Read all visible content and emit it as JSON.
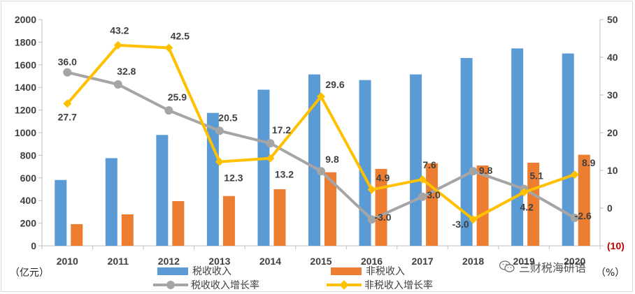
{
  "chart_data": {
    "type": "bar",
    "categories": [
      "2010",
      "2011",
      "2012",
      "2013",
      "2014",
      "2015",
      "2016",
      "2017",
      "2018",
      "2019",
      "2020"
    ],
    "series": [
      {
        "name": "税收收入",
        "kind": "bar",
        "axis": "left",
        "color": "#5b9bd5",
        "values": [
          582,
          775,
          980,
          1175,
          1380,
          1515,
          1465,
          1515,
          1660,
          1745,
          1700
        ]
      },
      {
        "name": "非税收入",
        "kind": "bar",
        "axis": "left",
        "color": "#ed7d31",
        "values": [
          192,
          278,
          395,
          440,
          500,
          650,
          680,
          730,
          710,
          735,
          805
        ]
      },
      {
        "name": "税收收入增长率",
        "kind": "line",
        "axis": "right",
        "color": "#a5a5a5",
        "marker": "circle",
        "values": [
          36.0,
          32.8,
          25.9,
          20.5,
          17.2,
          9.8,
          -3.0,
          3.0,
          9.8,
          5.1,
          -2.6
        ],
        "labels": [
          "36.0",
          "32.8",
          "25.9",
          "20.5",
          "17.2",
          "9.8",
          "-3.0",
          "3.0",
          "9.8",
          "5.1",
          "-2.6"
        ]
      },
      {
        "name": "非税收入增长率",
        "kind": "line",
        "axis": "right",
        "color": "#ffc000",
        "marker": "diamond",
        "values": [
          27.7,
          43.2,
          42.5,
          12.3,
          13.2,
          29.6,
          4.9,
          7.6,
          -3.0,
          4.2,
          8.9
        ],
        "labels": [
          "27.7",
          "43.2",
          "42.5",
          "12.3",
          "13.2",
          "29.6",
          "4.9",
          "7.6",
          "-3.0",
          "4.2",
          "8.9"
        ]
      }
    ],
    "ylim_left": [
      0,
      2000
    ],
    "yticks_left": [
      "0",
      "200",
      "400",
      "600",
      "800",
      "1000",
      "1200",
      "1400",
      "1600",
      "1800",
      "2000"
    ],
    "ylim_right": [
      -10,
      50
    ],
    "yticks_right": [
      "(10)",
      "0",
      "10",
      "20",
      "30",
      "40",
      "50"
    ],
    "ylabel_left": "（亿元）",
    "ylabel_right": "（%）",
    "grid": false,
    "legend_position": "bottom"
  },
  "watermark": "三财税海研语"
}
